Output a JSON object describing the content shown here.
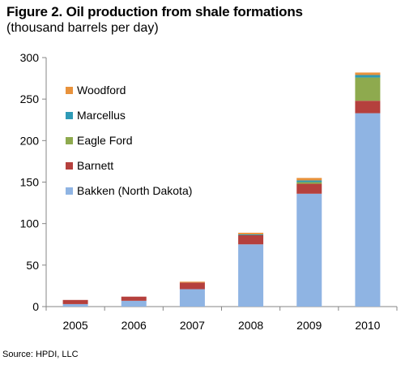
{
  "title": "Figure 2.  Oil production from shale formations",
  "subtitle": "(thousand barrels per day)",
  "source": "Source:  HPDI, LLC",
  "chart_data": {
    "type": "bar",
    "stacked": true,
    "title": "Figure 2.  Oil production from shale formations",
    "subtitle": "(thousand barrels per day)",
    "xlabel": "",
    "ylabel": "",
    "ylim": [
      0,
      300
    ],
    "yticks": [
      0,
      50,
      100,
      150,
      200,
      250,
      300
    ],
    "categories": [
      "2005",
      "2006",
      "2007",
      "2008",
      "2009",
      "2010"
    ],
    "grid": false,
    "legend_position": "top-left",
    "series": [
      {
        "name": "Bakken (North Dakota)",
        "color": "#8FB4E3",
        "values": [
          3,
          7,
          21,
          75,
          136,
          233
        ]
      },
      {
        "name": "Barnett",
        "color": "#B5403D",
        "values": [
          5,
          5,
          8,
          11,
          12,
          15
        ]
      },
      {
        "name": "Eagle Ford",
        "color": "#8EAA4E",
        "values": [
          0,
          0,
          0,
          0,
          2,
          28
        ]
      },
      {
        "name": "Marcellus",
        "color": "#2E9AB6",
        "values": [
          0,
          0,
          0,
          1,
          2,
          3
        ]
      },
      {
        "name": "Woodford",
        "color": "#E8923C",
        "values": [
          0,
          0,
          1,
          2,
          3,
          3
        ]
      }
    ],
    "legend_order": [
      "Woodford",
      "Marcellus",
      "Eagle Ford",
      "Barnett",
      "Bakken (North Dakota)"
    ]
  }
}
